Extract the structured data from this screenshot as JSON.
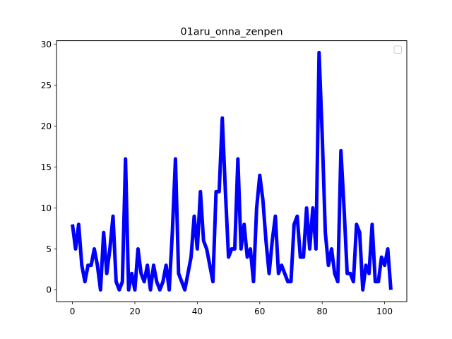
{
  "chart_data": {
    "type": "line",
    "title": "01aru_onna_zenpen",
    "xlabel": "",
    "ylabel": "",
    "xlim": [
      -5.1,
      107.1
    ],
    "ylim": [
      -1.45,
      30.45
    ],
    "x_ticks": [
      0,
      20,
      40,
      60,
      80,
      100
    ],
    "y_ticks": [
      0,
      5,
      10,
      15,
      20,
      25,
      30
    ],
    "grid": false,
    "legend": {
      "placement": "top-right",
      "entries": []
    },
    "series": [
      {
        "color": "#0000ff",
        "x": [
          0,
          1,
          2,
          3,
          4,
          5,
          6,
          7,
          8,
          9,
          10,
          11,
          12,
          13,
          14,
          15,
          16,
          17,
          18,
          19,
          20,
          21,
          22,
          23,
          24,
          25,
          26,
          27,
          28,
          29,
          30,
          31,
          32,
          33,
          34,
          35,
          36,
          37,
          38,
          39,
          40,
          41,
          42,
          43,
          44,
          45,
          46,
          47,
          48,
          49,
          50,
          51,
          52,
          53,
          54,
          55,
          56,
          57,
          58,
          59,
          60,
          61,
          62,
          63,
          64,
          65,
          66,
          67,
          68,
          69,
          70,
          71,
          72,
          73,
          74,
          75,
          76,
          77,
          78,
          79,
          80,
          81,
          82,
          83,
          84,
          85,
          86,
          87,
          88,
          89,
          90,
          91,
          92,
          93,
          94,
          95,
          96,
          97,
          98,
          99,
          100,
          101,
          102
        ],
        "values": [
          8,
          5,
          8,
          3,
          1,
          3,
          3,
          5,
          3,
          0,
          7,
          2,
          5,
          9,
          1,
          0,
          1,
          16,
          0,
          2,
          0,
          5,
          2,
          1,
          3,
          0,
          3,
          1,
          0,
          1,
          3,
          0,
          7,
          16,
          2,
          1,
          0,
          2,
          4,
          9,
          5,
          12,
          6,
          5,
          3,
          1,
          12,
          12,
          21,
          12,
          4,
          5,
          5,
          16,
          5,
          8,
          4,
          5,
          1,
          10,
          14,
          11,
          6,
          2,
          6,
          9,
          2,
          3,
          2,
          1,
          1,
          8,
          9,
          4,
          4,
          10,
          5,
          10,
          5,
          29,
          19,
          7,
          3,
          5,
          2,
          1,
          17,
          10,
          2,
          2,
          1,
          8,
          7,
          0,
          3,
          2,
          8,
          1,
          1,
          4,
          3,
          5,
          0
        ]
      }
    ]
  }
}
